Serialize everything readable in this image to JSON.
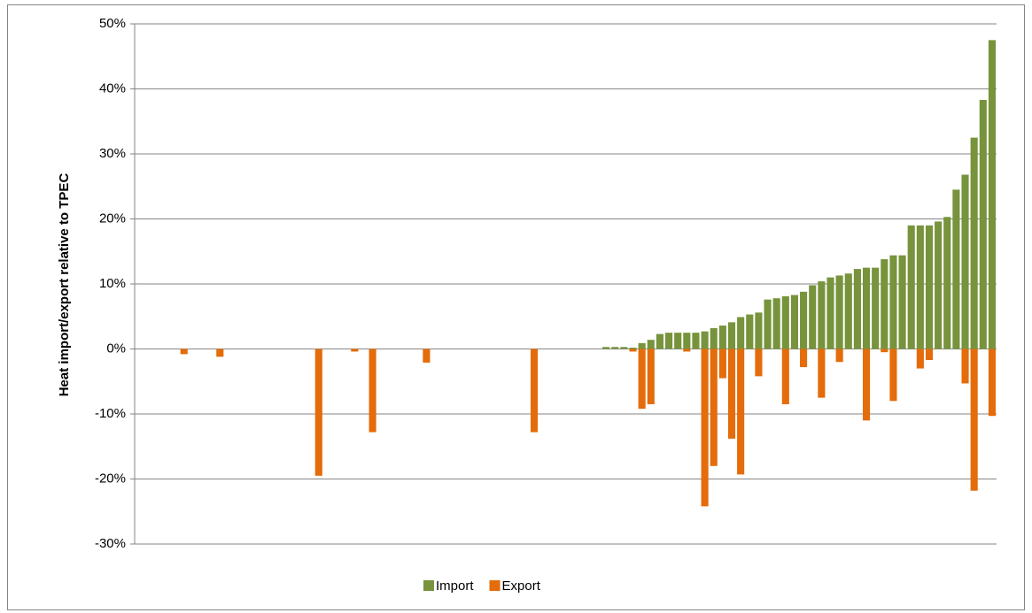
{
  "chart_data": {
    "type": "bar",
    "y_label": "Heat import/export relative to TPEC",
    "categories": [
      null,
      null,
      null,
      null,
      null,
      null,
      null,
      null,
      null,
      null,
      null,
      null,
      null,
      null,
      null,
      null,
      null,
      null,
      null,
      null,
      null,
      null,
      null,
      null,
      null,
      null,
      null,
      null,
      null,
      null,
      null,
      null,
      null,
      null,
      null,
      null,
      null,
      null,
      null,
      null,
      null,
      null,
      null,
      null,
      null,
      null,
      null,
      null,
      null,
      null,
      null,
      null,
      null,
      null,
      null,
      null,
      null,
      null,
      null,
      null,
      null,
      null,
      null,
      null,
      null,
      null,
      null,
      null,
      null,
      null,
      null,
      null,
      null,
      null,
      null,
      null,
      null,
      null,
      null,
      null,
      null,
      null,
      null,
      null,
      null,
      null,
      null,
      null,
      null,
      null,
      null,
      null,
      null,
      null,
      null,
      null
    ],
    "series": [
      {
        "name": "Import",
        "color": "#77933c",
        "values": [
          null,
          null,
          null,
          null,
          null,
          null,
          null,
          null,
          null,
          null,
          null,
          null,
          null,
          null,
          null,
          null,
          null,
          null,
          null,
          null,
          null,
          null,
          null,
          null,
          null,
          null,
          null,
          null,
          null,
          null,
          null,
          null,
          null,
          null,
          null,
          null,
          null,
          null,
          null,
          null,
          null,
          null,
          null,
          null,
          null,
          null,
          null,
          null,
          null,
          null,
          null,
          null,
          0.3,
          0.3,
          0.3,
          0.2,
          0.9,
          1.4,
          2.3,
          2.5,
          2.5,
          2.5,
          2.5,
          2.7,
          3.2,
          3.6,
          4.1,
          4.9,
          5.3,
          5.6,
          7.6,
          7.8,
          8.1,
          8.3,
          8.8,
          9.8,
          10.4,
          11.0,
          11.3,
          11.6,
          12.3,
          12.5,
          12.5,
          13.8,
          14.4,
          14.4,
          19.0,
          19.0,
          19.0,
          19.6,
          20.3,
          24.5,
          26.8,
          32.5,
          38.3,
          47.5
        ]
      },
      {
        "name": "Export",
        "color": "#e46c0a",
        "values": [
          null,
          null,
          null,
          null,
          null,
          -0.8,
          null,
          null,
          null,
          -1.2,
          null,
          null,
          null,
          null,
          null,
          null,
          null,
          null,
          null,
          null,
          -19.5,
          null,
          null,
          null,
          -0.4,
          null,
          -12.8,
          null,
          null,
          null,
          null,
          null,
          -2.1,
          null,
          null,
          null,
          null,
          null,
          null,
          null,
          null,
          null,
          null,
          null,
          -12.8,
          null,
          null,
          null,
          null,
          null,
          null,
          null,
          null,
          null,
          null,
          -0.4,
          -9.2,
          -8.5,
          null,
          null,
          null,
          -0.4,
          null,
          -24.2,
          -18.0,
          -4.5,
          -13.8,
          -19.3,
          null,
          -4.2,
          null,
          null,
          -8.5,
          null,
          -2.8,
          null,
          -7.5,
          null,
          -2.0,
          null,
          null,
          -11.0,
          null,
          -0.5,
          -8.0,
          null,
          null,
          -3.0,
          -1.7,
          null,
          null,
          null,
          -5.3,
          -21.8,
          null,
          -10.3
        ]
      }
    ],
    "ylim": [
      -30,
      50
    ],
    "yticks": [
      {
        "value": -30,
        "label": "-30%"
      },
      {
        "value": -20,
        "label": "-20%"
      },
      {
        "value": -10,
        "label": "-10%"
      },
      {
        "value": 0,
        "label": "0%"
      },
      {
        "value": 10,
        "label": "10%"
      },
      {
        "value": 20,
        "label": "20%"
      },
      {
        "value": 30,
        "label": "30%"
      },
      {
        "value": 40,
        "label": "40%"
      },
      {
        "value": 50,
        "label": "50%"
      }
    ],
    "grid": true,
    "legend": "bottom"
  }
}
